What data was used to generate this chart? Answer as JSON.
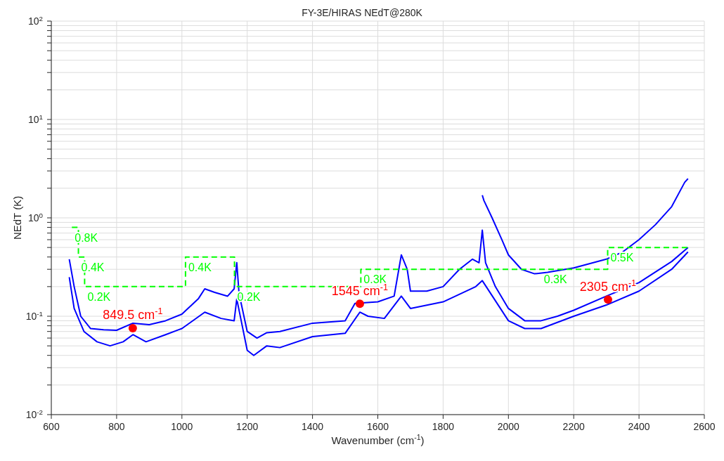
{
  "chart_data": {
    "type": "line",
    "title": "FY-3E/HIRAS NEdT@280K",
    "xlabel": "Wavenumber (cm$^{-1}$)",
    "ylabel": "NEdT (K)",
    "log": "y",
    "grid": true,
    "legend": false,
    "marker": "none",
    "line_style": "solid",
    "xlim": [
      600,
      2600
    ],
    "xticks": [
      600,
      800,
      1000,
      1200,
      1400,
      1600,
      1800,
      2000,
      2200,
      2400,
      2600
    ],
    "ylim": [
      0.01,
      100
    ],
    "yticks": [
      {
        "value": 0.01,
        "label": "10$^{-2}$"
      },
      {
        "value": 0.02,
        "label": null
      },
      {
        "value": 0.03,
        "label": null
      },
      {
        "value": 0.04,
        "label": null
      },
      {
        "value": 0.05,
        "label": null
      },
      {
        "value": 0.06,
        "label": null
      },
      {
        "value": 0.07,
        "label": null
      },
      {
        "value": 0.08,
        "label": null
      },
      {
        "value": 0.09,
        "label": null
      },
      {
        "value": 0.1,
        "label": "10$^{-1}$"
      },
      {
        "value": 0.2,
        "label": null
      },
      {
        "value": 0.3,
        "label": null
      },
      {
        "value": 0.4,
        "label": null
      },
      {
        "value": 0.5,
        "label": null
      },
      {
        "value": 0.6,
        "label": null
      },
      {
        "value": 0.7,
        "label": null
      },
      {
        "value": 0.8,
        "label": null
      },
      {
        "value": 0.9,
        "label": null
      },
      {
        "value": 1,
        "label": "10$^{0}$"
      },
      {
        "value": 2,
        "label": null
      },
      {
        "value": 3,
        "label": null
      },
      {
        "value": 4,
        "label": null
      },
      {
        "value": 5,
        "label": null
      },
      {
        "value": 6,
        "label": null
      },
      {
        "value": 7,
        "label": null
      },
      {
        "value": 8,
        "label": null
      },
      {
        "value": 9,
        "label": null
      },
      {
        "value": 10,
        "label": "10$^{1}$"
      },
      {
        "value": 20,
        "label": null
      },
      {
        "value": 30,
        "label": null
      },
      {
        "value": 40,
        "label": null
      },
      {
        "value": 50,
        "label": null
      },
      {
        "value": 60,
        "label": null
      },
      {
        "value": 70,
        "label": null
      },
      {
        "value": 80,
        "label": null
      },
      {
        "value": 90,
        "label": null
      },
      {
        "value": 100,
        "label": "10$^{2}$"
      }
    ],
    "series": [
      {
        "color": "#0000ff",
        "x": [
          655,
          670,
          690,
          720,
          760,
          800,
          850,
          900,
          950,
          1000,
          1050,
          1070,
          1100,
          1140,
          1160,
          1168,
          1175,
          1200,
          1230,
          1260,
          1300,
          1400,
          1500,
          1530,
          1600,
          1650,
          1672,
          1690,
          1700,
          1750,
          1800,
          1850,
          1890,
          1910,
          1920,
          1930,
          1960,
          2000,
          2050,
          2100,
          2150,
          2200,
          2300,
          2400,
          2500,
          2550
        ],
        "values": [
          0.38,
          0.2,
          0.1,
          0.075,
          0.073,
          0.072,
          0.085,
          0.082,
          0.09,
          0.105,
          0.15,
          0.19,
          0.175,
          0.16,
          0.19,
          0.35,
          0.17,
          0.07,
          0.06,
          0.068,
          0.07,
          0.085,
          0.09,
          0.135,
          0.14,
          0.16,
          0.42,
          0.3,
          0.18,
          0.18,
          0.2,
          0.3,
          0.38,
          0.35,
          0.75,
          0.35,
          0.2,
          0.12,
          0.09,
          0.09,
          0.1,
          0.115,
          0.16,
          0.22,
          0.36,
          0.5
        ]
      },
      {
        "color": "#0000ff",
        "x": [
          655,
          670,
          700,
          740,
          780,
          820,
          850,
          890,
          950,
          1000,
          1070,
          1120,
          1160,
          1168,
          1200,
          1220,
          1260,
          1300,
          1400,
          1500,
          1545,
          1570,
          1620,
          1672,
          1700,
          1800,
          1900,
          1920,
          2000,
          2050,
          2100,
          2200,
          2300,
          2400,
          2500,
          2550
        ],
        "values": [
          0.25,
          0.12,
          0.07,
          0.055,
          0.05,
          0.055,
          0.065,
          0.055,
          0.065,
          0.075,
          0.11,
          0.095,
          0.09,
          0.15,
          0.045,
          0.04,
          0.05,
          0.048,
          0.062,
          0.067,
          0.11,
          0.1,
          0.095,
          0.16,
          0.12,
          0.14,
          0.2,
          0.23,
          0.09,
          0.075,
          0.075,
          0.1,
          0.13,
          0.18,
          0.3,
          0.45
        ]
      },
      {
        "color": "#0000ff",
        "x": [
          1920,
          1925,
          1950,
          1980,
          2000,
          2040,
          2080,
          2120,
          2200,
          2300,
          2350,
          2400,
          2450,
          2500,
          2540,
          2550
        ],
        "values": [
          1.7,
          1.5,
          1.0,
          0.6,
          0.42,
          0.3,
          0.27,
          0.28,
          0.31,
          0.38,
          0.45,
          0.6,
          0.85,
          1.3,
          2.3,
          2.5
        ]
      },
      {
        "type": "step",
        "color": "#00ff00",
        "line_style": "dashed",
        "x": [
          663,
          683,
          702,
          1011,
          1161,
          1548,
          2100,
          2304,
          2553
        ],
        "values": [
          0.8,
          0.4,
          0.2,
          0.4,
          0.2,
          0.3,
          0.3,
          0.5,
          0.5
        ],
        "value_labels": [
          "0.8K",
          "0.4K",
          "0.2K",
          "0.4K",
          "0.2K",
          "0.3K",
          "0.3K",
          "0.5K",
          null
        ]
      },
      {
        "type": "scatter",
        "marker": "circle",
        "color": "#ff0000",
        "x": [
          849.5,
          1545,
          2305
        ],
        "values": [
          0.0757,
          0.134,
          0.148
        ],
        "value_labels": [
          "849.5 cm$^{-1}$",
          "1545 cm$^{-1}$",
          "2305 cm$^{-1}$"
        ]
      }
    ]
  }
}
